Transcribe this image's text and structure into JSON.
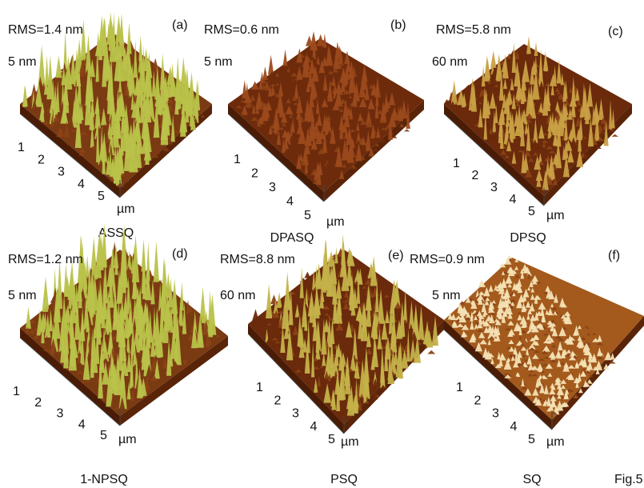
{
  "panels": [
    {
      "label": "(a)",
      "rms": "RMS=1.4 nm",
      "z_scale": "5 nm",
      "ticks": [
        "1",
        "2",
        "3",
        "4",
        "5"
      ],
      "unit": "µm",
      "sample": "ASSQ"
    },
    {
      "label": "(b)",
      "rms": "RMS=0.6 nm",
      "z_scale": "5 nm",
      "ticks": [
        "1",
        "2",
        "3",
        "4",
        "5"
      ],
      "unit": "µm",
      "sample": "DPASQ"
    },
    {
      "label": "(c)",
      "rms": "RMS=5.8 nm",
      "z_scale": "60 nm",
      "ticks": [
        "1",
        "2",
        "3",
        "4",
        "5"
      ],
      "unit": "µm",
      "sample": "DPSQ"
    },
    {
      "label": "(d)",
      "rms": "RMS=1.2 nm",
      "z_scale": "5 nm",
      "ticks": [
        "1",
        "2",
        "3",
        "4",
        "5"
      ],
      "unit": "µm",
      "sample": "1-NPSQ"
    },
    {
      "label": "(e)",
      "rms": "RMS=8.8 nm",
      "z_scale": "60 nm",
      "ticks": [
        "1",
        "2",
        "3",
        "4",
        "5"
      ],
      "unit": "µm",
      "sample": "PSQ"
    },
    {
      "label": "(f)",
      "rms": "RMS=0.9 nm",
      "z_scale": "5 nm",
      "ticks": [
        "1",
        "2",
        "3",
        "4",
        "5"
      ],
      "unit": "µm",
      "sample": "SQ"
    }
  ],
  "figure_label": "Fig.5"
}
